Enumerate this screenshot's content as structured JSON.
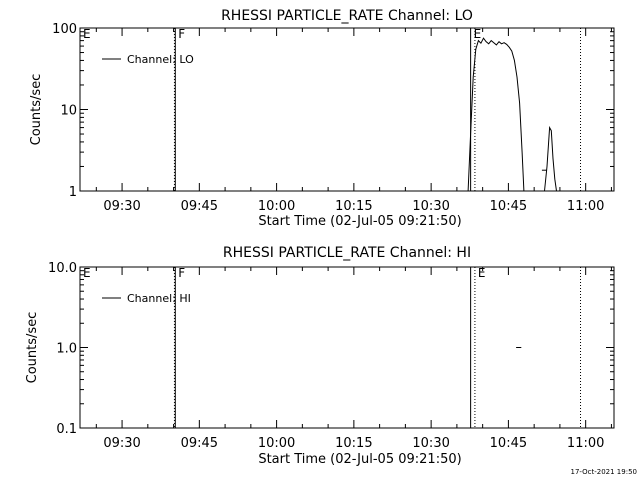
{
  "footer_date": "17-Oct-2021 19:50",
  "chart_data": [
    {
      "type": "line",
      "title": "RHESSI PARTICLE_RATE Channel: LO",
      "xlabel": "Start Time (02-Jul-05 09:21:50)",
      "ylabel": "Counts/sec",
      "yscale": "log",
      "ylim": [
        1,
        100
      ],
      "y_ticks": [
        1,
        10,
        100
      ],
      "y_tick_labels": [
        "1",
        "10",
        "100"
      ],
      "xlim": [
        "09:21:50",
        "11:05:30"
      ],
      "x_ticks": [
        "09:30",
        "09:45",
        "10:00",
        "10:15",
        "10:30",
        "10:45",
        "11:00"
      ],
      "legend": {
        "placement": "top-left",
        "label": "Channel: LO"
      },
      "markers": [
        {
          "label": "E",
          "time": "09:21:50",
          "style": "solid"
        },
        {
          "label": "F",
          "time": "09:40:20",
          "style": "solid"
        },
        {
          "label": "",
          "time": "09:40:10",
          "style": "dotted"
        },
        {
          "label": "E",
          "time": "10:37:40",
          "style": "solid"
        },
        {
          "label": "",
          "time": "10:38:30",
          "style": "dotted"
        },
        {
          "label": "",
          "time": "10:59:00",
          "style": "dotted"
        }
      ],
      "series": [
        {
          "points": [
            [
              "10:37:10",
              1
            ],
            [
              "10:37:40",
              5
            ],
            [
              "10:38:10",
              25
            ],
            [
              "10:38:40",
              55
            ],
            [
              "10:39:10",
              70
            ],
            [
              "10:39:40",
              65
            ],
            [
              "10:40:10",
              75
            ],
            [
              "10:40:40",
              68
            ],
            [
              "10:41:10",
              64
            ],
            [
              "10:41:40",
              70
            ],
            [
              "10:42:10",
              66
            ],
            [
              "10:42:40",
              62
            ],
            [
              "10:43:10",
              68
            ],
            [
              "10:43:40",
              64
            ],
            [
              "10:44:10",
              66
            ],
            [
              "10:44:40",
              63
            ],
            [
              "10:45:10",
              58
            ],
            [
              "10:45:40",
              52
            ],
            [
              "10:46:10",
              40
            ],
            [
              "10:46:40",
              25
            ],
            [
              "10:47:10",
              12
            ],
            [
              "10:47:40",
              3
            ],
            [
              "10:48:00",
              1
            ]
          ]
        },
        {
          "points": [
            [
              "10:52:00",
              1
            ],
            [
              "10:52:30",
              2
            ],
            [
              "10:53:00",
              6
            ],
            [
              "10:53:20",
              5.5
            ],
            [
              "10:53:40",
              2.5
            ],
            [
              "10:54:00",
              1.4
            ],
            [
              "10:54:20",
              1
            ]
          ]
        },
        {
          "points": [
            [
              "10:51:30",
              1.8
            ],
            [
              "10:52:30",
              1.8
            ]
          ]
        }
      ]
    },
    {
      "type": "line",
      "title": "RHESSI PARTICLE_RATE Channel: HI",
      "xlabel": "Start Time (02-Jul-05 09:21:50)",
      "ylabel": "Counts/sec",
      "yscale": "log",
      "ylim": [
        0.1,
        10
      ],
      "y_ticks": [
        0.1,
        1,
        10
      ],
      "y_tick_labels": [
        "0.1",
        "1.0",
        "10.0"
      ],
      "xlim": [
        "09:21:50",
        "11:05:30"
      ],
      "x_ticks": [
        "09:30",
        "09:45",
        "10:00",
        "10:15",
        "10:30",
        "10:45",
        "11:00"
      ],
      "legend": {
        "placement": "top-left",
        "label": "Channel: HI"
      },
      "markers": [
        {
          "label": "E",
          "time": "09:21:50",
          "style": "solid"
        },
        {
          "label": "F",
          "time": "09:40:20",
          "style": "solid"
        },
        {
          "label": "",
          "time": "09:40:10",
          "style": "dotted"
        },
        {
          "label": "",
          "time": "10:37:40",
          "style": "solid"
        },
        {
          "label": "E",
          "time": "10:38:30",
          "style": "dotted"
        },
        {
          "label": "",
          "time": "10:59:00",
          "style": "dotted"
        }
      ],
      "series": [
        {
          "points": [
            [
              "10:46:30",
              1.0
            ],
            [
              "10:47:30",
              1.0
            ]
          ]
        }
      ]
    }
  ]
}
